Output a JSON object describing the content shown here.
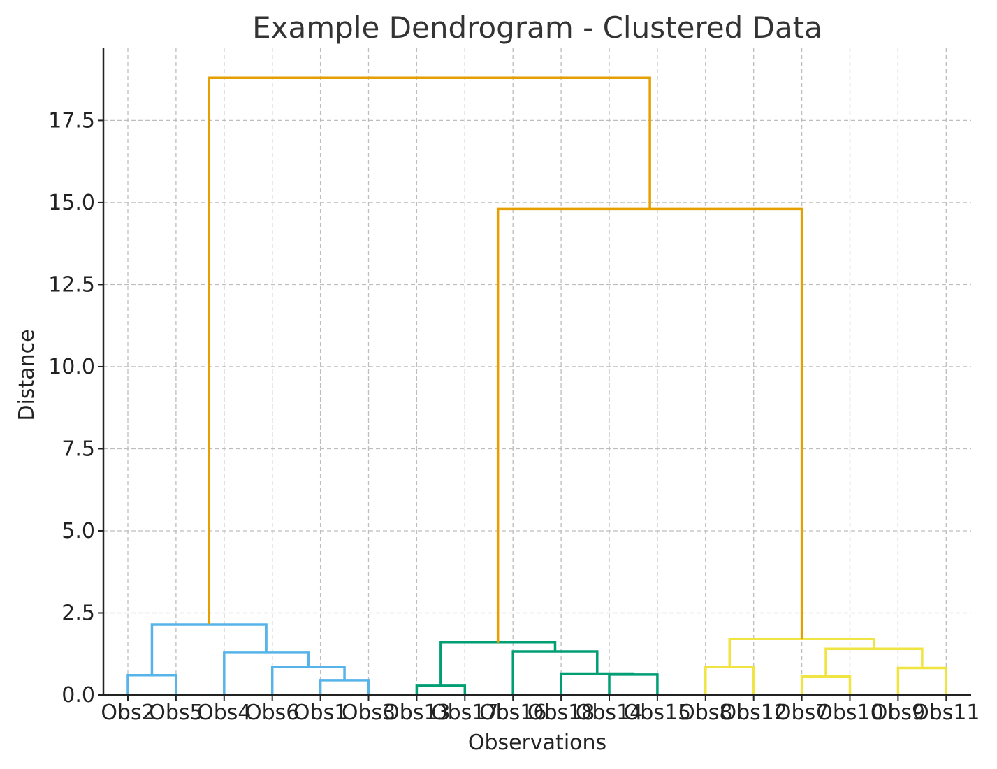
{
  "chart_data": {
    "type": "dendrogram",
    "title": "Example Dendrogram - Clustered Data",
    "xlabel": "Observations",
    "ylabel": "Distance",
    "ylim": [
      0,
      19.7
    ],
    "yticks": [
      0.0,
      2.5,
      5.0,
      7.5,
      10.0,
      12.5,
      15.0,
      17.5
    ],
    "ytick_labels": [
      "0.0",
      "2.5",
      "5.0",
      "7.5",
      "10.0",
      "12.5",
      "15.0",
      "17.5"
    ],
    "grid": true,
    "leaves": [
      "Obs2",
      "Obs5",
      "Obs4",
      "Obs6",
      "Obs1",
      "Obs3",
      "Obs13",
      "Obs17",
      "Obs16",
      "Obs18",
      "Obs14",
      "Obs15",
      "Obs8",
      "Obs12",
      "Obs7",
      "Obs10",
      "Obs9",
      "Obs11"
    ],
    "colors": {
      "above_threshold": "#E69F00",
      "cluster_1": "#56B4E9",
      "cluster_2": "#009E73",
      "cluster_3": "#F0E442"
    },
    "merges": [
      {
        "id": "A",
        "left": "Obs2",
        "right": "Obs5",
        "height": 0.6,
        "color": "cluster_1"
      },
      {
        "id": "B",
        "left": "Obs1",
        "right": "Obs3",
        "height": 0.45,
        "color": "cluster_1"
      },
      {
        "id": "C",
        "left": "Obs6",
        "right": "B",
        "height": 0.85,
        "color": "cluster_1"
      },
      {
        "id": "D",
        "left": "Obs4",
        "right": "C",
        "height": 1.3,
        "color": "cluster_1"
      },
      {
        "id": "E",
        "left": "A",
        "right": "D",
        "height": 2.15,
        "color": "cluster_1"
      },
      {
        "id": "F",
        "left": "Obs13",
        "right": "Obs17",
        "height": 0.28,
        "color": "cluster_2"
      },
      {
        "id": "G",
        "left": "Obs14",
        "right": "Obs15",
        "height": 0.62,
        "color": "cluster_2"
      },
      {
        "id": "H",
        "left": "Obs18",
        "right": "G",
        "height": 0.65,
        "color": "cluster_2"
      },
      {
        "id": "I",
        "left": "Obs16",
        "right": "H",
        "height": 1.32,
        "color": "cluster_2"
      },
      {
        "id": "J",
        "left": "F",
        "right": "I",
        "height": 1.6,
        "color": "cluster_2"
      },
      {
        "id": "K",
        "left": "Obs8",
        "right": "Obs12",
        "height": 0.85,
        "color": "cluster_3"
      },
      {
        "id": "L",
        "left": "Obs7",
        "right": "Obs10",
        "height": 0.57,
        "color": "cluster_3"
      },
      {
        "id": "M",
        "left": "Obs9",
        "right": "Obs11",
        "height": 0.82,
        "color": "cluster_3"
      },
      {
        "id": "N",
        "left": "L",
        "right": "M",
        "height": 1.4,
        "color": "cluster_3"
      },
      {
        "id": "O",
        "left": "K",
        "right": "N",
        "height": 1.7,
        "color": "cluster_3"
      },
      {
        "id": "P",
        "left": "J",
        "right": "O",
        "height": 14.8,
        "color": "above_threshold"
      },
      {
        "id": "Q",
        "left": "E",
        "right": "P",
        "height": 18.8,
        "color": "above_threshold"
      }
    ]
  }
}
